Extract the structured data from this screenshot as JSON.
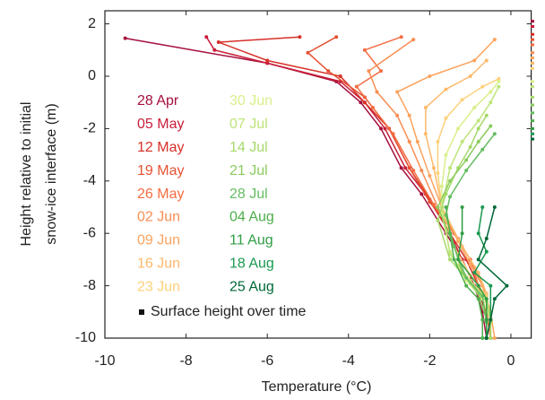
{
  "chart_data": {
    "type": "line",
    "x_label": "Temperature (°C)",
    "y_label": [
      "Height relative to initial",
      "snow-ice interface (m)"
    ],
    "legend_note": "Surface height over time",
    "xlim": [
      -10,
      0.5
    ],
    "ylim": [
      -10,
      2.5
    ],
    "xticks": [
      -10,
      -8,
      -6,
      -4,
      -2,
      0
    ],
    "yticks": [
      -10,
      -8,
      -6,
      -4,
      -2,
      0,
      2
    ],
    "series": [
      {
        "name": "28 Apr",
        "color": "#a50f3c",
        "surface_height": 2.1,
        "x": [
          -9.5,
          -6,
          -4.3,
          -3.7,
          -3.2,
          -2.7,
          -2.2,
          -1.6,
          -1.2,
          -0.9,
          -0.7,
          -0.6
        ],
        "values": [
          1.45,
          0.5,
          -0.2,
          -1,
          -2,
          -3.5,
          -4.5,
          -6,
          -7,
          -8,
          -9,
          -10
        ]
      },
      {
        "name": "05 May",
        "color": "#c81e3a",
        "surface_height": 1.9,
        "x": [
          -7.5,
          -7.3,
          -6,
          -4.2,
          -3.6,
          -3.1,
          -2.6,
          -2.1,
          -1.5,
          -1.2,
          -0.9,
          -0.6,
          -0.5
        ],
        "values": [
          1.5,
          1.0,
          0.5,
          -0.2,
          -1,
          -2,
          -3.5,
          -4.5,
          -6,
          -7,
          -8,
          -9,
          -10
        ]
      },
      {
        "name": "12 May",
        "color": "#d73027",
        "surface_height": 1.6,
        "x": [
          -5.2,
          -7.2,
          -6,
          -4.2,
          -3.6,
          -3,
          -2.5,
          -2,
          -1.5,
          -1.1,
          -0.8,
          -0.6,
          -0.5
        ],
        "values": [
          1.5,
          1.3,
          0.6,
          0,
          -1,
          -2,
          -3.5,
          -4.7,
          -6,
          -7,
          -8,
          -9,
          -10
        ]
      },
      {
        "name": "19 May",
        "color": "#e65234",
        "surface_height": 1.4,
        "x": [
          -4.3,
          -5,
          -4.5,
          -3.6,
          -3,
          -2.5,
          -2,
          -1.4,
          -1.0,
          -0.8,
          -0.6,
          -0.5
        ],
        "values": [
          1.5,
          0.9,
          0.2,
          -0.8,
          -2,
          -3.5,
          -4.8,
          -6,
          -7,
          -8,
          -9,
          -10
        ]
      },
      {
        "name": "26 May",
        "color": "#f46d43",
        "surface_height": 1.2,
        "x": [
          -2.7,
          -3.6,
          -3.2,
          -3.8,
          -3.4,
          -2.9,
          -2.4,
          -1.9,
          -1.4,
          -1.0,
          -0.8,
          -0.6,
          -0.5
        ],
        "values": [
          1.5,
          1.0,
          0.2,
          -0.4,
          -1.2,
          -2.2,
          -3.6,
          -4.9,
          -6,
          -7,
          -8,
          -9,
          -10
        ]
      },
      {
        "name": "02 Jun",
        "color": "#f88d52",
        "surface_height": 0.9,
        "x": [
          -2.4,
          -3.5,
          -3.3,
          -2.8,
          -2.5,
          -2.2,
          -1.8,
          -1.3,
          -0.9,
          -0.7,
          -0.5,
          -0.5
        ],
        "values": [
          1.4,
          0.2,
          -0.6,
          -1.5,
          -2.5,
          -3.6,
          -5,
          -6.2,
          -7.3,
          -8,
          -9,
          -10
        ]
      },
      {
        "name": "09 Jun",
        "color": "#fba35e",
        "surface_height": 0.7,
        "x": [
          -0.4,
          -0.9,
          -2,
          -2.8,
          -2.5,
          -2.3,
          -2,
          -1.7,
          -1.3,
          -1,
          -0.7,
          -0.5,
          -0.4
        ],
        "values": [
          1.4,
          0.6,
          0,
          -0.6,
          -1.5,
          -2.5,
          -3.8,
          -5,
          -6.3,
          -7.2,
          -8,
          -9,
          -10
        ]
      },
      {
        "name": "16 Jun",
        "color": "#fdb96b",
        "surface_height": 0.5,
        "x": [
          -0.6,
          -1,
          -1.6,
          -2.1,
          -2.1,
          -1.9,
          -1.7,
          -1.2,
          -0.8,
          -0.6,
          -0.5,
          -0.5
        ],
        "values": [
          0.6,
          0,
          -0.5,
          -1.2,
          -2.2,
          -3.5,
          -5,
          -6.5,
          -7.5,
          -8.3,
          -9.3,
          -10
        ]
      },
      {
        "name": "23 Jun",
        "color": "#fdd17a",
        "surface_height": 0.3,
        "x": [
          -0.3,
          -0.7,
          -1.2,
          -1.6,
          -1.8,
          -1.8,
          -1.7,
          -1.4,
          -1,
          -0.6,
          -0.5,
          -0.5
        ],
        "values": [
          -0.1,
          -0.4,
          -0.9,
          -1.6,
          -2.5,
          -3.7,
          -5,
          -6.5,
          -7.6,
          -8.4,
          -9.3,
          -10
        ]
      },
      {
        "name": "30 Jun",
        "color": "#d9ef8b",
        "surface_height": -0.2,
        "x": [
          -0.3,
          -0.5,
          -0.9,
          -1.3,
          -1.6,
          -1.7,
          -1.7,
          -1.5,
          -1.1,
          -0.7,
          -0.5,
          -0.5
        ],
        "values": [
          -0.2,
          -0.6,
          -1.2,
          -2,
          -3,
          -4.2,
          -5.3,
          -6.7,
          -7.8,
          -8.5,
          -9.3,
          -10
        ]
      },
      {
        "name": "07 Jul",
        "color": "#bfe47a",
        "surface_height": -0.4,
        "x": [
          -0.3,
          -0.5,
          -0.8,
          -1.2,
          -1.5,
          -1.7,
          -1.5,
          -1.0,
          -0.6,
          -0.5,
          -0.5
        ],
        "values": [
          -0.4,
          -1.0,
          -1.7,
          -2.5,
          -3.5,
          -5,
          -6.8,
          -7.8,
          -8.5,
          -9.3,
          -10
        ]
      },
      {
        "name": "14 Jul",
        "color": "#a6d96a",
        "surface_height": -0.8,
        "x": [
          -0.6,
          -0.8,
          -1,
          -1.3,
          -1.6,
          -1.8,
          -1.5,
          -1.0,
          -0.6,
          -0.5,
          -0.5
        ],
        "values": [
          -1.5,
          -2,
          -2.7,
          -3.5,
          -4.5,
          -5.5,
          -7,
          -7.9,
          -8.6,
          -9.4,
          -10
        ]
      },
      {
        "name": "21 Jul",
        "color": "#8ccb5e",
        "surface_height": -1.1,
        "x": [
          -0.5,
          -0.8,
          -1.1,
          -1.5,
          -1.8,
          -1.4,
          -1.2,
          -0.8,
          -0.6,
          -0.6
        ],
        "values": [
          -1.9,
          -2.5,
          -3.2,
          -4,
          -5,
          -6.5,
          -7.5,
          -8.3,
          -9.3,
          -10
        ]
      },
      {
        "name": "28 Jul",
        "color": "#66bd63",
        "surface_height": -1.4,
        "x": [
          -0.4,
          -0.7,
          -1.1,
          -1.5,
          -1.6,
          -1.4,
          -1.1,
          -0.7,
          -0.6,
          -0.6
        ],
        "values": [
          -2.2,
          -2.8,
          -3.6,
          -4.6,
          -5.3,
          -6.5,
          -7.7,
          -8.4,
          -9.4,
          -10
        ]
      },
      {
        "name": "04 Aug",
        "color": "#4daf4a",
        "surface_height": -1.7,
        "x": [
          -1.6,
          -1.5,
          -1.4,
          -1.1,
          -0.8,
          -0.7,
          -0.7
        ],
        "values": [
          -5,
          -6,
          -7,
          -8,
          -8.5,
          -9.3,
          -10
        ]
      },
      {
        "name": "11 Aug",
        "color": "#2f9e44",
        "surface_height": -2.0,
        "x": [
          -1.2,
          -1.2,
          -1.3,
          -0.8,
          -0.6,
          -0.6,
          -0.6
        ],
        "values": [
          -5,
          -6,
          -7,
          -8,
          -8.5,
          -9.3,
          -10
        ]
      },
      {
        "name": "18 Aug",
        "color": "#1a9850",
        "surface_height": -2.2,
        "x": [
          -0.7,
          -0.8,
          -0.6,
          -0.9,
          -0.5,
          -0.5,
          -0.6
        ],
        "values": [
          -5,
          -6,
          -6.7,
          -7.5,
          -8,
          -9.3,
          -10
        ]
      },
      {
        "name": "25 Aug",
        "color": "#006837",
        "surface_height": -2.4,
        "x": [
          -0.4,
          -0.6,
          -0.8,
          -0.1,
          -0.4,
          -0.5,
          -0.6
        ],
        "values": [
          -5,
          -6.2,
          -7,
          -8,
          -8.5,
          -9.3,
          -10
        ]
      }
    ]
  }
}
